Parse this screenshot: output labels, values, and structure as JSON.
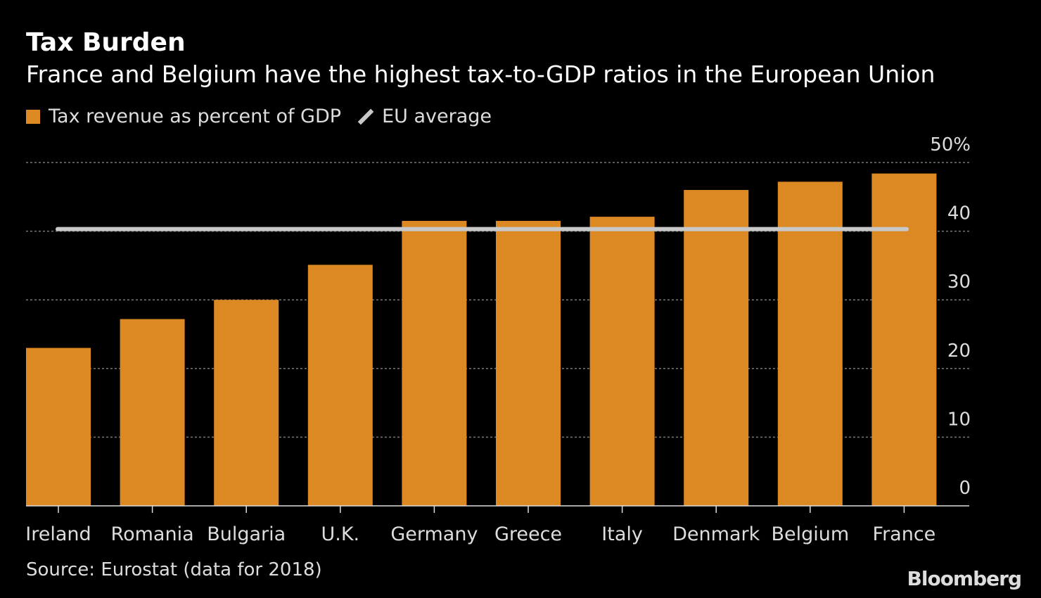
{
  "header": {
    "title": "Tax Burden",
    "subtitle": "France and Belgium have the highest tax-to-GDP ratios in the European Union"
  },
  "legend": {
    "bar_label": "Tax revenue as percent of GDP",
    "line_label": "EU average"
  },
  "footer": {
    "source": "Source: Eurostat (data for 2018)",
    "logo": "Bloomberg"
  },
  "colors": {
    "bar": "#dc8924",
    "line": "#c8c8c8",
    "grid": "#777777"
  },
  "chart_data": {
    "type": "bar",
    "title": "Tax Burden",
    "subtitle": "France and Belgium have the highest tax-to-GDP ratios in the European Union",
    "categories": [
      "Ireland",
      "Romania",
      "Bulgaria",
      "U.K.",
      "Germany",
      "Greece",
      "Italy",
      "Denmark",
      "Belgium",
      "France"
    ],
    "series": [
      {
        "name": "Tax revenue as percent of GDP",
        "values": [
          23.0,
          27.2,
          30.0,
          35.1,
          41.5,
          41.5,
          42.1,
          46.0,
          47.2,
          48.4
        ]
      }
    ],
    "reference_line": {
      "name": "EU average",
      "value": 40.3
    },
    "ylim": [
      0,
      50
    ],
    "yticks": [
      0,
      10,
      20,
      30,
      40,
      50
    ],
    "ytick_labels": [
      "0",
      "10",
      "20",
      "30",
      "40",
      "50%"
    ],
    "y_axis_position": "right",
    "grid": true,
    "legend_placement": "top-left"
  }
}
